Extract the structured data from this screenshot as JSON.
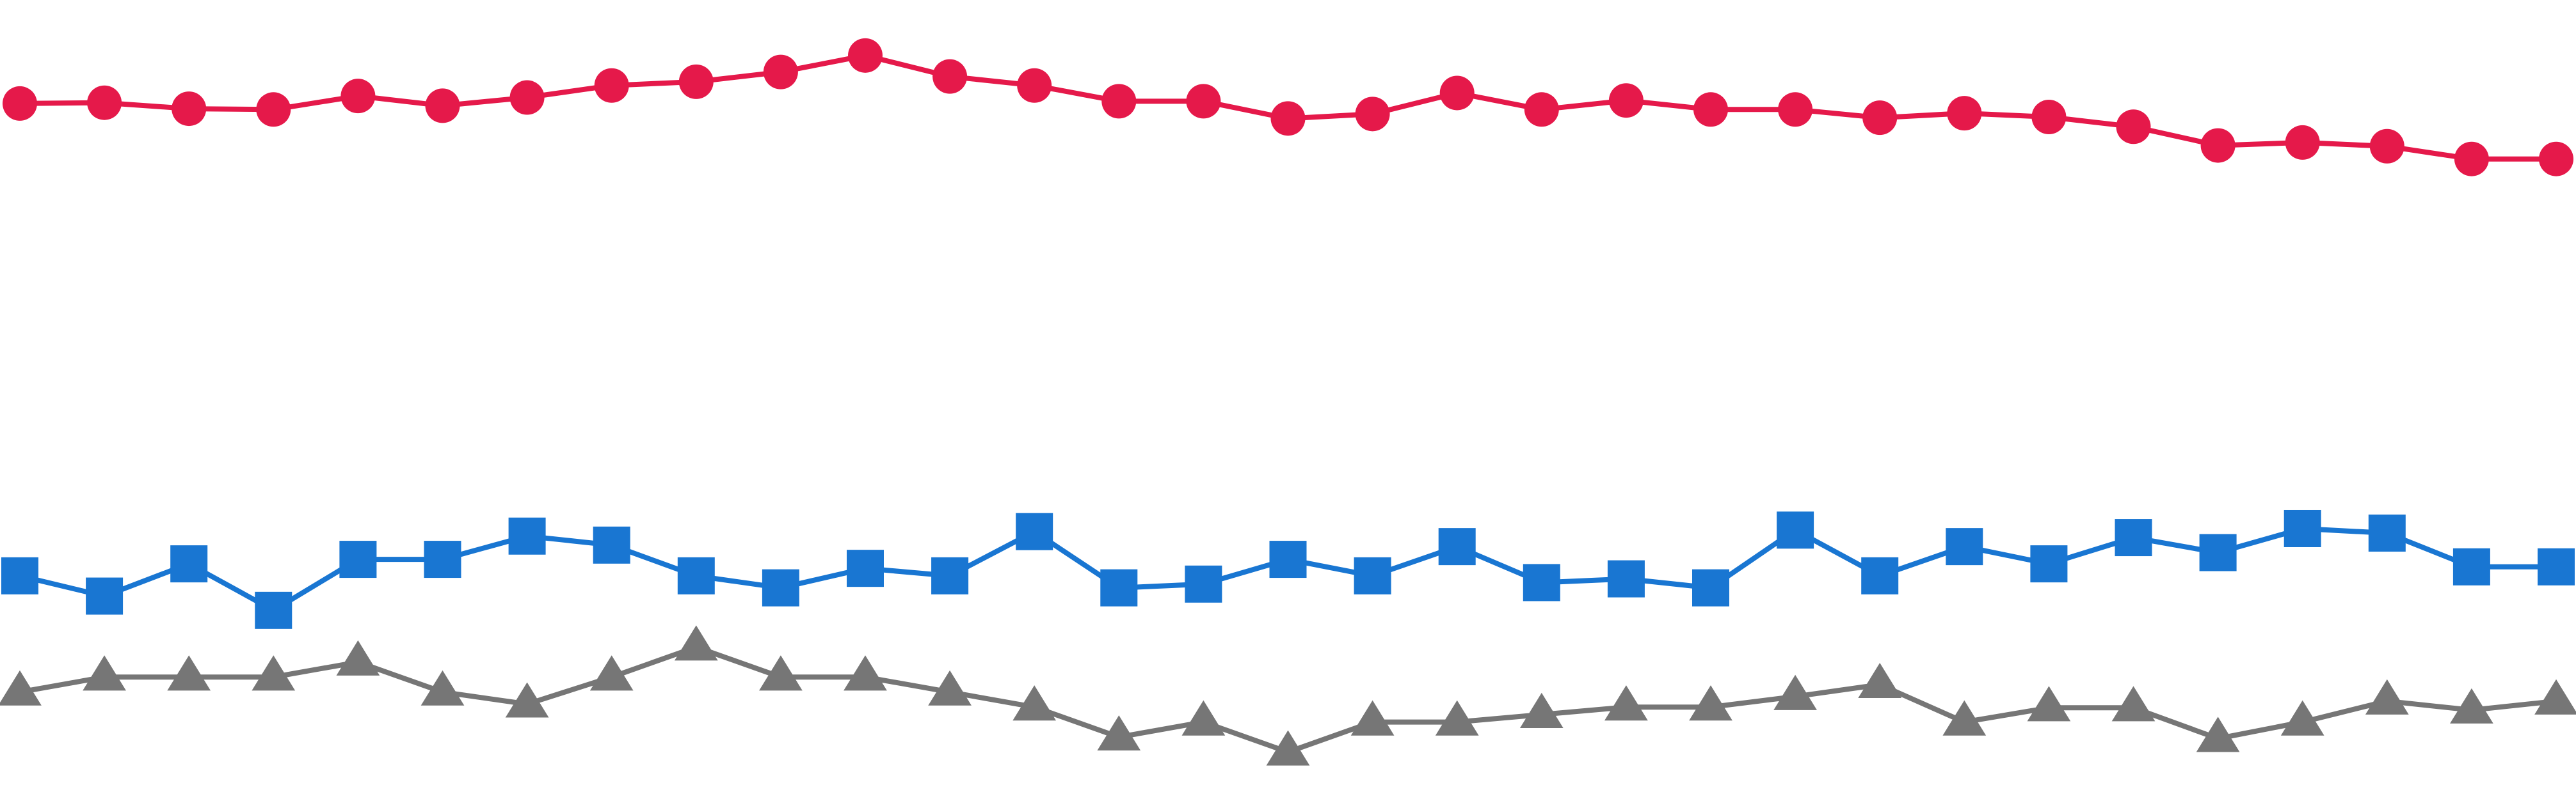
{
  "chart_data": {
    "type": "line",
    "title": "",
    "xlabel": "",
    "ylabel": "",
    "x": [
      1,
      2,
      3,
      4,
      5,
      6,
      7,
      8,
      9,
      10,
      11,
      12,
      13,
      14,
      15,
      16,
      17,
      18,
      19,
      20,
      21,
      22,
      23,
      24,
      25,
      26,
      27,
      28,
      29,
      30,
      31
    ],
    "xlim": [
      1,
      31
    ],
    "ylim": [
      0,
      100
    ],
    "grid": false,
    "legend": "none",
    "axes_visible": false,
    "series": [
      {
        "color": "#e5194a",
        "marker": "circle",
        "values": [
          88.5,
          88.6,
          87.8,
          87.7,
          89.5,
          88.2,
          89.3,
          90.9,
          91.4,
          92.7,
          94.9,
          92.1,
          90.9,
          88.8,
          88.8,
          86.5,
          87.1,
          89.9,
          87.7,
          88.9,
          87.7,
          87.7,
          86.6,
          87.2,
          86.7,
          85.4,
          82.9,
          83.3,
          82.8,
          81.1,
          81.1
        ]
      },
      {
        "color": "#1976d2",
        "marker": "square",
        "values": [
          25.5,
          22.8,
          27.1,
          20.9,
          27.7,
          27.7,
          30.8,
          29.6,
          25.5,
          23.9,
          26.5,
          25.5,
          31.4,
          23.9,
          24.4,
          27.7,
          25.5,
          29.4,
          24.6,
          25.1,
          23.9,
          31.6,
          25.5,
          29.4,
          27.1,
          30.6,
          28.6,
          31.8,
          31.2,
          26.7,
          26.7
        ]
      },
      {
        "color": "#767676",
        "marker": "triangle",
        "values": [
          10.0,
          12.0,
          12.0,
          12.0,
          14.0,
          10.0,
          8.4,
          12.0,
          16.0,
          12.0,
          12.0,
          10.0,
          8.0,
          4.0,
          6.0,
          2.0,
          6.0,
          6.0,
          7.0,
          8.0,
          8.0,
          9.4,
          11.0,
          6.0,
          7.9,
          7.9,
          3.8,
          6.0,
          8.8,
          7.6,
          8.8
        ]
      }
    ]
  }
}
